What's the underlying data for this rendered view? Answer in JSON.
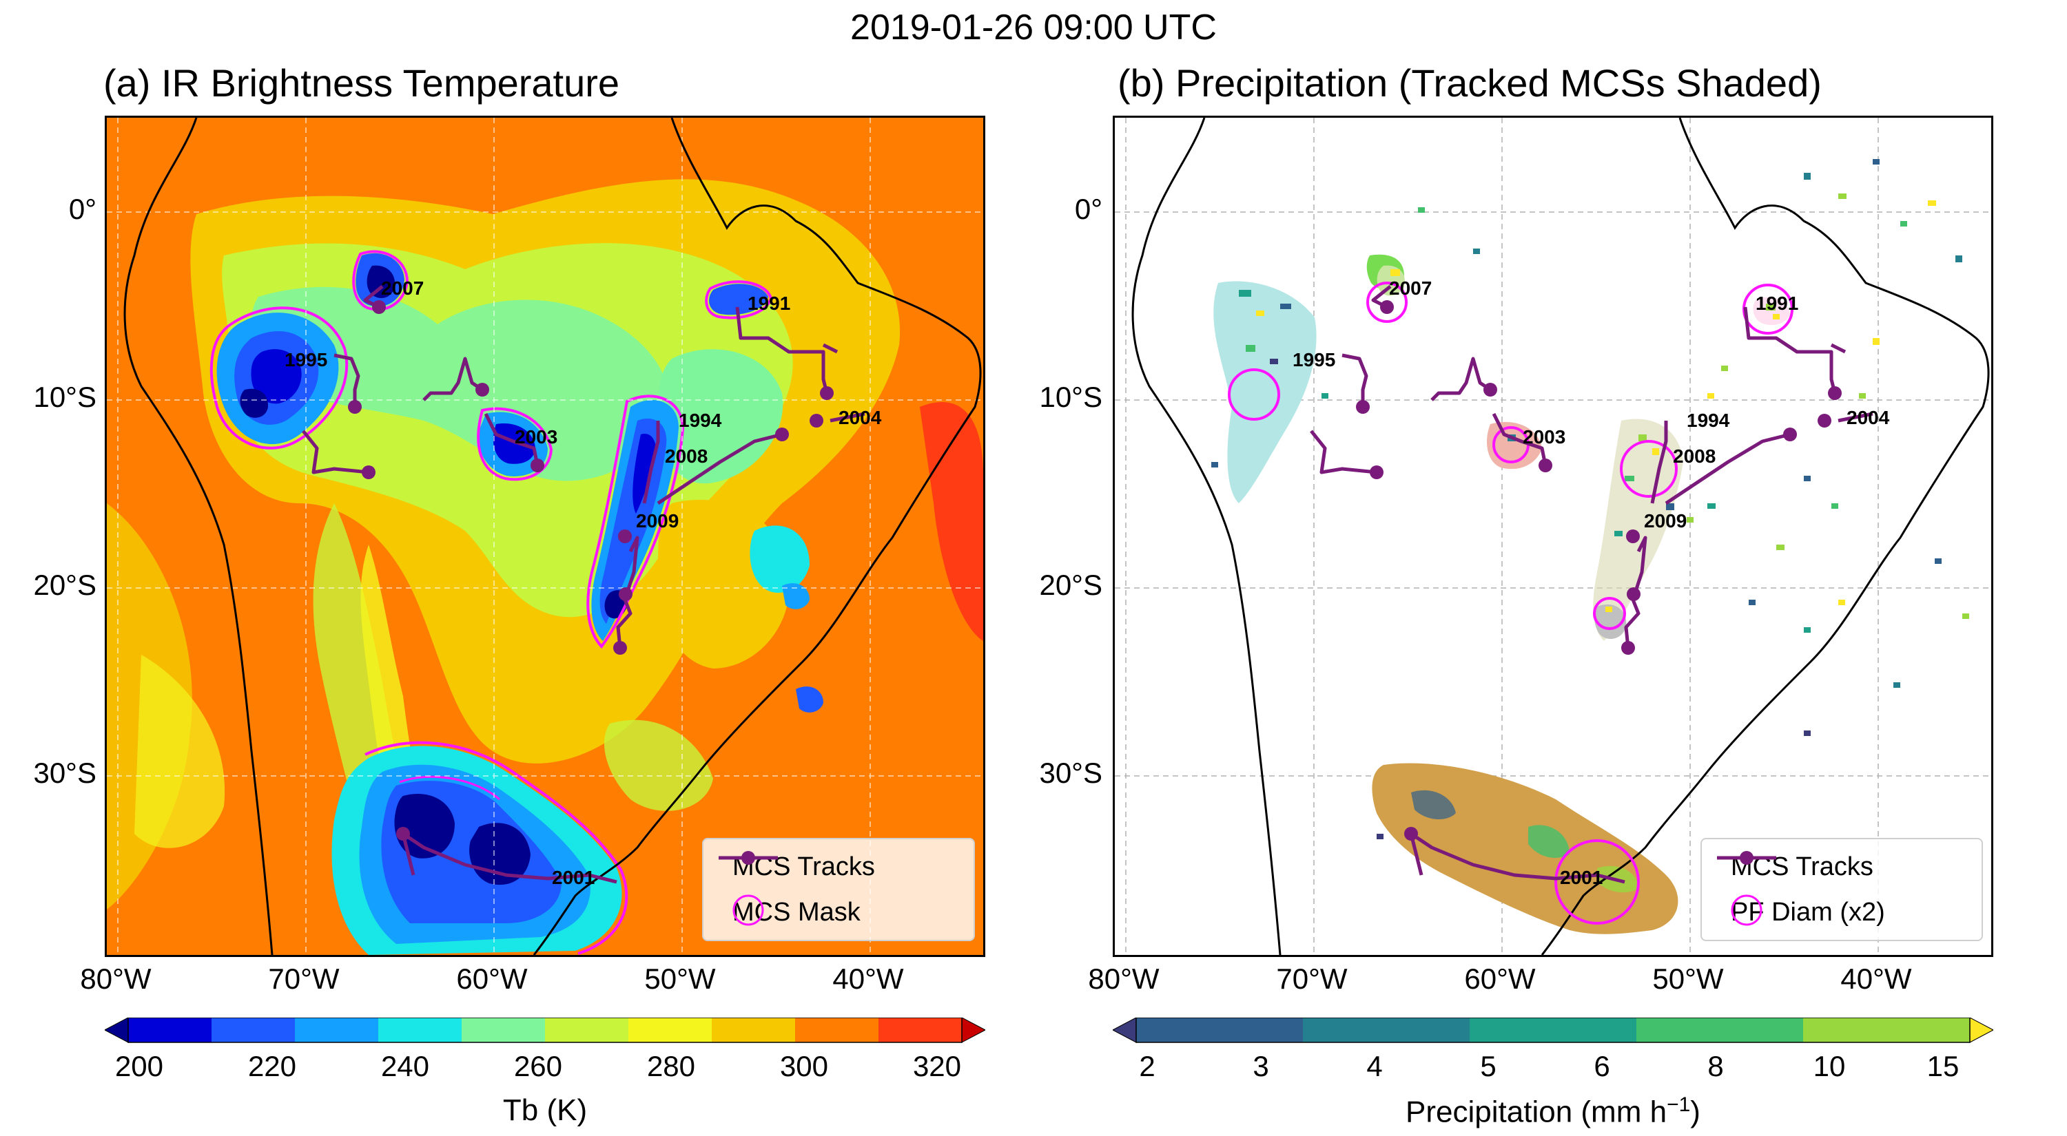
{
  "figure": {
    "time_title": "2019-01-26 09:00 UTC"
  },
  "panel_a": {
    "title": "(a) IR Brightness Temperature",
    "legend": {
      "track_label": "MCS Tracks",
      "mask_label": "MCS Mask"
    },
    "colorbar": {
      "label": "Tb (K)",
      "ticks": [
        "200",
        "220",
        "240",
        "260",
        "280",
        "300",
        "320"
      ],
      "colors": [
        "#00008c",
        "#0000d8",
        "#1e5aff",
        "#14a0ff",
        "#19e6e6",
        "#7ff59b",
        "#c8f53c",
        "#f5f51e",
        "#f5c800",
        "#ff7d00",
        "#ff3c14",
        "#c80000"
      ]
    }
  },
  "panel_b": {
    "title": "(b) Precipitation (Tracked MCSs Shaded)",
    "legend": {
      "track_label": "MCS Tracks",
      "diam_label": "PF Diam (x2)"
    },
    "colorbar": {
      "label": "Precipitation (mm h",
      "label_sup": "−1",
      "label_end": ")",
      "ticks": [
        "2",
        "3",
        "4",
        "5",
        "6",
        "8",
        "10",
        "15"
      ],
      "colors": [
        "#3b3b7c",
        "#2f5f8d",
        "#24808e",
        "#1fa088",
        "#43c06b",
        "#98d83e",
        "#fde725"
      ]
    }
  },
  "axes": {
    "lat_labels": [
      "0°",
      "10°S",
      "20°S",
      "30°S"
    ],
    "lon_labels": [
      "80°W",
      "70°W",
      "60°W",
      "50°W",
      "40°W"
    ]
  },
  "track_ids": [
    "2007",
    "1991",
    "1995",
    "2003",
    "1994",
    "2004",
    "2008",
    "2009",
    "2001"
  ],
  "colors": {
    "track": "#7a1a7a",
    "mask": "#ff14ff",
    "ocean_warm": "#ff7d00"
  }
}
